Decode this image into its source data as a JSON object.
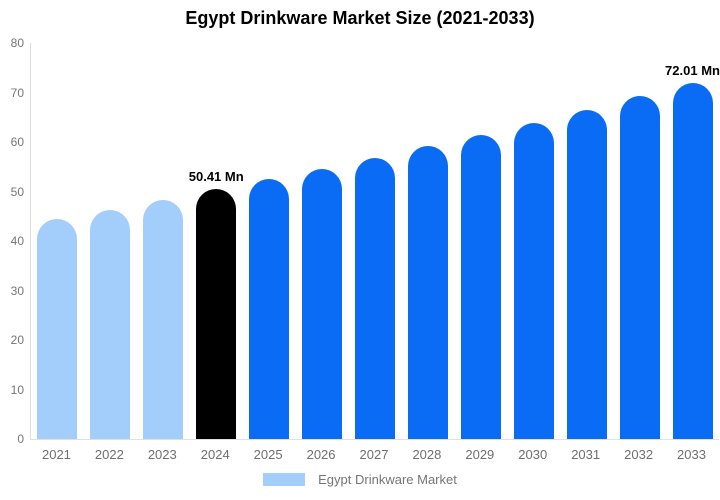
{
  "chart": {
    "title": "Egypt Drinkware Market Size (2021-2033)",
    "legend_label": "Egypt Drinkware Market"
  },
  "chart_data": {
    "type": "bar",
    "title": "Egypt Drinkware Market Size (2021-2033)",
    "series_name": "Egypt Drinkware Market",
    "categories": [
      "2021",
      "2022",
      "2023",
      "2024",
      "2025",
      "2026",
      "2027",
      "2028",
      "2029",
      "2030",
      "2031",
      "2032",
      "2033"
    ],
    "values": [
      44.4,
      46.3,
      48.3,
      50.41,
      52.5,
      54.6,
      56.8,
      59.1,
      61.4,
      63.9,
      66.5,
      69.2,
      72.01
    ],
    "data_labels": [
      "",
      "",
      "",
      "50.41 Mn",
      "",
      "",
      "",
      "",
      "",
      "",
      "",
      "",
      "72.01 Mn"
    ],
    "point_styles": [
      "historical",
      "historical",
      "historical",
      "highlight",
      "forecast",
      "forecast",
      "forecast",
      "forecast",
      "forecast",
      "forecast",
      "forecast",
      "forecast",
      "forecast"
    ],
    "colors": {
      "historical": "#a3cdfa",
      "highlight": "#000000",
      "forecast": "#0a6cf5"
    },
    "xlabel": "",
    "ylabel": "",
    "ylim": [
      0,
      80
    ],
    "yticks": [
      0,
      10,
      20,
      30,
      40,
      50,
      60,
      70,
      80
    ],
    "grid": false,
    "legend": {
      "label": "Egypt Drinkware Market",
      "position": "bottom",
      "swatch_color": "#a3cdfa"
    },
    "axis_colors": {
      "axis_line": "#dcdcdc",
      "tick_text": "#757575",
      "xtick_text": "#6e6e6e"
    }
  }
}
